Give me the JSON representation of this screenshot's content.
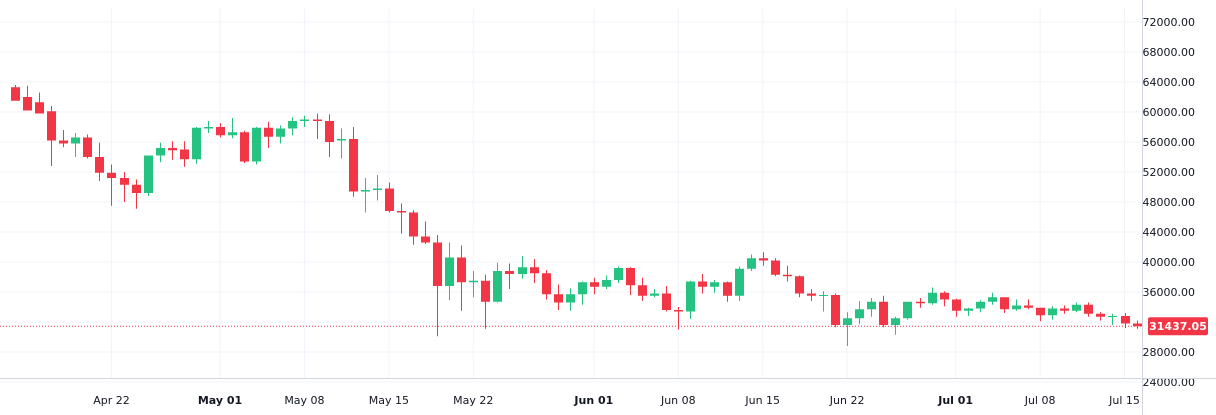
{
  "colors": {
    "up": "#26c281",
    "down": "#f23645",
    "grid": "#f0f3fa",
    "axis": "#d1d4dc",
    "text": "#131722",
    "price_line": "#f23645"
  },
  "chart_data": {
    "type": "candlestick",
    "title": "",
    "xlabel": "",
    "ylabel": "",
    "ylim": [
      24000,
      72000
    ],
    "grid": true,
    "y_ticks": [
      "72000.00",
      "68000.00",
      "64000.00",
      "60000.00",
      "56000.00",
      "52000.00",
      "48000.00",
      "44000.00",
      "40000.00",
      "36000.00",
      "28000.00",
      "24000.00"
    ],
    "y_tick_values": [
      72000,
      68000,
      64000,
      60000,
      56000,
      52000,
      48000,
      44000,
      40000,
      36000,
      28000,
      24000
    ],
    "x_ticks": [
      {
        "label": "Apr 22",
        "day": 8,
        "bold": false
      },
      {
        "label": "May 01",
        "day": 17,
        "bold": true
      },
      {
        "label": "May 08",
        "day": 24,
        "bold": false
      },
      {
        "label": "May 15",
        "day": 31,
        "bold": false
      },
      {
        "label": "May 22",
        "day": 38,
        "bold": false
      },
      {
        "label": "Jun 01",
        "day": 48,
        "bold": true
      },
      {
        "label": "Jun 08",
        "day": 55,
        "bold": false
      },
      {
        "label": "Jun 15",
        "day": 62,
        "bold": false
      },
      {
        "label": "Jun 22",
        "day": 69,
        "bold": false
      },
      {
        "label": "Jul 01",
        "day": 78,
        "bold": true
      },
      {
        "label": "Jul 08",
        "day": 85,
        "bold": false
      },
      {
        "label": "Jul 15",
        "day": 92,
        "bold": false
      }
    ],
    "last_price": 31437.05,
    "last_price_label": "31437.05",
    "candles": [
      {
        "date": "Apr 14",
        "o": 63300,
        "h": 63600,
        "l": 61700,
        "c": 61500
      },
      {
        "date": "Apr 15",
        "o": 62000,
        "h": 63500,
        "l": 60300,
        "c": 60200
      },
      {
        "date": "Apr 16",
        "o": 61300,
        "h": 62600,
        "l": 60000,
        "c": 59800
      },
      {
        "date": "Apr 17",
        "o": 60100,
        "h": 60800,
        "l": 52800,
        "c": 56200
      },
      {
        "date": "Apr 18",
        "o": 56200,
        "h": 57600,
        "l": 55300,
        "c": 55800
      },
      {
        "date": "Apr 19",
        "o": 55800,
        "h": 57200,
        "l": 54000,
        "c": 56600
      },
      {
        "date": "Apr 20",
        "o": 56600,
        "h": 57000,
        "l": 53800,
        "c": 54000
      },
      {
        "date": "Apr 21",
        "o": 54000,
        "h": 55900,
        "l": 50800,
        "c": 51900
      },
      {
        "date": "Apr 22",
        "o": 51900,
        "h": 53000,
        "l": 47500,
        "c": 51200
      },
      {
        "date": "Apr 23",
        "o": 51200,
        "h": 52000,
        "l": 48000,
        "c": 50300
      },
      {
        "date": "Apr 24",
        "o": 50300,
        "h": 51000,
        "l": 47100,
        "c": 49200
      },
      {
        "date": "Apr 25",
        "o": 49200,
        "h": 54000,
        "l": 48800,
        "c": 54200
      },
      {
        "date": "Apr 26",
        "o": 54200,
        "h": 55900,
        "l": 53300,
        "c": 55200
      },
      {
        "date": "Apr 27",
        "o": 55200,
        "h": 56100,
        "l": 53600,
        "c": 54900
      },
      {
        "date": "Apr 28",
        "o": 55000,
        "h": 56100,
        "l": 52700,
        "c": 53700
      },
      {
        "date": "Apr 29",
        "o": 53700,
        "h": 58000,
        "l": 53100,
        "c": 57900
      },
      {
        "date": "Apr 30",
        "o": 57800,
        "h": 58800,
        "l": 57200,
        "c": 58000
      },
      {
        "date": "May 01",
        "o": 58000,
        "h": 58500,
        "l": 56600,
        "c": 56900
      },
      {
        "date": "May 02",
        "o": 56900,
        "h": 59200,
        "l": 56500,
        "c": 57300
      },
      {
        "date": "May 03",
        "o": 57300,
        "h": 57500,
        "l": 53200,
        "c": 53400
      },
      {
        "date": "May 04",
        "o": 53400,
        "h": 58000,
        "l": 53000,
        "c": 57900
      },
      {
        "date": "May 05",
        "o": 57900,
        "h": 58700,
        "l": 55200,
        "c": 56700
      },
      {
        "date": "May 06",
        "o": 56700,
        "h": 58200,
        "l": 55800,
        "c": 57800
      },
      {
        "date": "May 07",
        "o": 57800,
        "h": 59300,
        "l": 56900,
        "c": 58800
      },
      {
        "date": "May 08",
        "o": 58800,
        "h": 59500,
        "l": 58000,
        "c": 59000
      },
      {
        "date": "May 09",
        "o": 59000,
        "h": 59800,
        "l": 56400,
        "c": 58800
      },
      {
        "date": "May 10",
        "o": 58800,
        "h": 59700,
        "l": 54000,
        "c": 56000
      },
      {
        "date": "May 11",
        "o": 56200,
        "h": 57800,
        "l": 53800,
        "c": 56400
      },
      {
        "date": "May 12",
        "o": 56400,
        "h": 58000,
        "l": 48700,
        "c": 49400
      },
      {
        "date": "May 13",
        "o": 49400,
        "h": 51200,
        "l": 46600,
        "c": 49600
      },
      {
        "date": "May 14",
        "o": 49600,
        "h": 51600,
        "l": 48200,
        "c": 49800
      },
      {
        "date": "May 15",
        "o": 49800,
        "h": 50600,
        "l": 46600,
        "c": 46800
      },
      {
        "date": "May 16",
        "o": 46800,
        "h": 47800,
        "l": 43800,
        "c": 46600
      },
      {
        "date": "May 17",
        "o": 46600,
        "h": 46900,
        "l": 42300,
        "c": 43400
      },
      {
        "date": "May 18",
        "o": 43400,
        "h": 45400,
        "l": 42400,
        "c": 42600
      },
      {
        "date": "May 19",
        "o": 42600,
        "h": 43600,
        "l": 30100,
        "c": 36800
      },
      {
        "date": "May 20",
        "o": 36800,
        "h": 42600,
        "l": 34900,
        "c": 40600
      },
      {
        "date": "May 21",
        "o": 40600,
        "h": 42200,
        "l": 33500,
        "c": 37300
      },
      {
        "date": "May 22",
        "o": 37300,
        "h": 38800,
        "l": 35300,
        "c": 37500
      },
      {
        "date": "May 23",
        "o": 37500,
        "h": 38300,
        "l": 31100,
        "c": 34700
      },
      {
        "date": "May 24",
        "o": 34700,
        "h": 39900,
        "l": 34600,
        "c": 38800
      },
      {
        "date": "May 25",
        "o": 38800,
        "h": 39800,
        "l": 36400,
        "c": 38400
      },
      {
        "date": "May 26",
        "o": 38400,
        "h": 40800,
        "l": 37800,
        "c": 39300
      },
      {
        "date": "May 27",
        "o": 39300,
        "h": 40400,
        "l": 37200,
        "c": 38500
      },
      {
        "date": "May 28",
        "o": 38500,
        "h": 38900,
        "l": 35000,
        "c": 35700
      },
      {
        "date": "May 29",
        "o": 35700,
        "h": 37000,
        "l": 33600,
        "c": 34600
      },
      {
        "date": "May 30",
        "o": 34600,
        "h": 36500,
        "l": 33500,
        "c": 35700
      },
      {
        "date": "May 31",
        "o": 35700,
        "h": 37400,
        "l": 34300,
        "c": 37300
      },
      {
        "date": "Jun 01",
        "o": 37300,
        "h": 37900,
        "l": 35700,
        "c": 36700
      },
      {
        "date": "Jun 02",
        "o": 36700,
        "h": 38200,
        "l": 36400,
        "c": 37600
      },
      {
        "date": "Jun 03",
        "o": 37600,
        "h": 39400,
        "l": 37200,
        "c": 39200
      },
      {
        "date": "Jun 04",
        "o": 39200,
        "h": 39300,
        "l": 35600,
        "c": 36900
      },
      {
        "date": "Jun 05",
        "o": 36900,
        "h": 37900,
        "l": 34800,
        "c": 35500
      },
      {
        "date": "Jun 06",
        "o": 35500,
        "h": 36400,
        "l": 35300,
        "c": 35800
      },
      {
        "date": "Jun 07",
        "o": 35800,
        "h": 36800,
        "l": 33400,
        "c": 33600
      },
      {
        "date": "Jun 08",
        "o": 33600,
        "h": 34000,
        "l": 31000,
        "c": 33400
      },
      {
        "date": "Jun 09",
        "o": 33400,
        "h": 37500,
        "l": 32400,
        "c": 37400
      },
      {
        "date": "Jun 10",
        "o": 37400,
        "h": 38400,
        "l": 35800,
        "c": 36700
      },
      {
        "date": "Jun 11",
        "o": 36700,
        "h": 37600,
        "l": 35900,
        "c": 37300
      },
      {
        "date": "Jun 12",
        "o": 37300,
        "h": 37400,
        "l": 34700,
        "c": 35500
      },
      {
        "date": "Jun 13",
        "o": 35500,
        "h": 39400,
        "l": 34800,
        "c": 39100
      },
      {
        "date": "Jun 14",
        "o": 39100,
        "h": 41000,
        "l": 38800,
        "c": 40500
      },
      {
        "date": "Jun 15",
        "o": 40500,
        "h": 41300,
        "l": 39500,
        "c": 40200
      },
      {
        "date": "Jun 16",
        "o": 40200,
        "h": 40500,
        "l": 38100,
        "c": 38300
      },
      {
        "date": "Jun 17",
        "o": 38300,
        "h": 39500,
        "l": 37400,
        "c": 38100
      },
      {
        "date": "Jun 18",
        "o": 38100,
        "h": 38200,
        "l": 35300,
        "c": 35800
      },
      {
        "date": "Jun 19",
        "o": 35800,
        "h": 36400,
        "l": 34800,
        "c": 35500
      },
      {
        "date": "Jun 20",
        "o": 35500,
        "h": 36100,
        "l": 33400,
        "c": 35600
      },
      {
        "date": "Jun 21",
        "o": 35600,
        "h": 35800,
        "l": 31300,
        "c": 31600
      },
      {
        "date": "Jun 22",
        "o": 31600,
        "h": 33300,
        "l": 28800,
        "c": 32500
      },
      {
        "date": "Jun 23",
        "o": 32500,
        "h": 34800,
        "l": 31700,
        "c": 33700
      },
      {
        "date": "Jun 24",
        "o": 33700,
        "h": 35200,
        "l": 32700,
        "c": 34700
      },
      {
        "date": "Jun 25",
        "o": 34700,
        "h": 35500,
        "l": 31300,
        "c": 31600
      },
      {
        "date": "Jun 26",
        "o": 31600,
        "h": 32700,
        "l": 30300,
        "c": 32500
      },
      {
        "date": "Jun 27",
        "o": 32500,
        "h": 34700,
        "l": 32300,
        "c": 34700
      },
      {
        "date": "Jun 28",
        "o": 34700,
        "h": 35200,
        "l": 33900,
        "c": 34500
      },
      {
        "date": "Jun 29",
        "o": 34500,
        "h": 36600,
        "l": 34300,
        "c": 35900
      },
      {
        "date": "Jun 30",
        "o": 35900,
        "h": 36100,
        "l": 34100,
        "c": 35000
      },
      {
        "date": "Jul 01",
        "o": 35000,
        "h": 35100,
        "l": 32700,
        "c": 33500
      },
      {
        "date": "Jul 02",
        "o": 33500,
        "h": 33900,
        "l": 32800,
        "c": 33800
      },
      {
        "date": "Jul 03",
        "o": 33800,
        "h": 34900,
        "l": 33300,
        "c": 34700
      },
      {
        "date": "Jul 04",
        "o": 34700,
        "h": 35900,
        "l": 34300,
        "c": 35300
      },
      {
        "date": "Jul 05",
        "o": 35300,
        "h": 35300,
        "l": 33200,
        "c": 33700
      },
      {
        "date": "Jul 06",
        "o": 33700,
        "h": 35000,
        "l": 33500,
        "c": 34200
      },
      {
        "date": "Jul 07",
        "o": 34200,
        "h": 35000,
        "l": 33700,
        "c": 33900
      },
      {
        "date": "Jul 08",
        "o": 33900,
        "h": 33900,
        "l": 32100,
        "c": 32900
      },
      {
        "date": "Jul 09",
        "o": 32900,
        "h": 34100,
        "l": 32300,
        "c": 33800
      },
      {
        "date": "Jul 10",
        "o": 33800,
        "h": 34200,
        "l": 33100,
        "c": 33500
      },
      {
        "date": "Jul 11",
        "o": 33500,
        "h": 34600,
        "l": 33300,
        "c": 34300
      },
      {
        "date": "Jul 12",
        "o": 34300,
        "h": 34600,
        "l": 32700,
        "c": 33100
      },
      {
        "date": "Jul 13",
        "o": 33100,
        "h": 33300,
        "l": 32200,
        "c": 32700
      },
      {
        "date": "Jul 14",
        "o": 32700,
        "h": 33100,
        "l": 31600,
        "c": 32800
      },
      {
        "date": "Jul 15",
        "o": 32800,
        "h": 33200,
        "l": 31200,
        "c": 31800
      },
      {
        "date": "Jul 16",
        "o": 31800,
        "h": 32200,
        "l": 31100,
        "c": 31437.05
      }
    ]
  }
}
